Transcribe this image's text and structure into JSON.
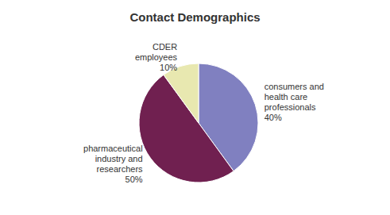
{
  "chart_data": {
    "type": "pie",
    "title": "Contact Demographics",
    "categories": [
      "consumers and\nhealth care\nprofessionals",
      "pharmaceutical\nindustry and\nresearchers",
      "CDER\nemployees"
    ],
    "values": [
      40,
      50,
      10
    ],
    "value_labels": [
      "40%",
      "50%",
      "10%"
    ],
    "colors": [
      "#8080c0",
      "#702050",
      "#e8e8b0"
    ],
    "data_labels": true
  }
}
